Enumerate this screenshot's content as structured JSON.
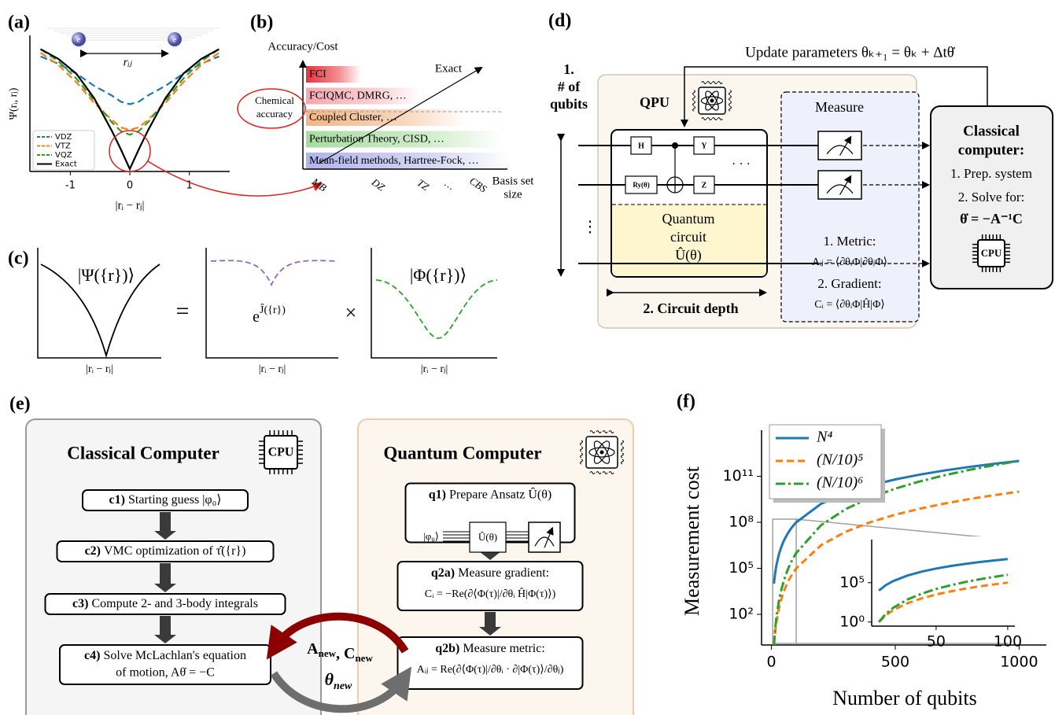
{
  "panel_a": {
    "label": "(a)",
    "y_label": "Ψ(rᵢ, rⱼ)",
    "x_label": "|rᵢ − rⱼ|",
    "distance_label": "rᵢⱼ",
    "electrons": [
      "e",
      "e"
    ],
    "x": [
      -1.5,
      -1.2,
      -0.9,
      -0.6,
      -0.3,
      -0.15,
      0,
      0.15,
      0.3,
      0.6,
      0.9,
      1.2,
      1.5
    ],
    "series": [
      {
        "name": "VDZ",
        "color": "#1f77b4",
        "linestyle": "dashed",
        "values": [
          0.94,
          0.88,
          0.8,
          0.7,
          0.62,
          0.57,
          0.55,
          0.57,
          0.62,
          0.7,
          0.8,
          0.88,
          0.94
        ]
      },
      {
        "name": "VTZ",
        "color": "#ff7f0e",
        "linestyle": "dashed",
        "values": [
          0.97,
          0.87,
          0.73,
          0.56,
          0.42,
          0.36,
          0.34,
          0.36,
          0.42,
          0.56,
          0.73,
          0.87,
          0.97
        ]
      },
      {
        "name": "VQZ",
        "color": "#2ca02c",
        "linestyle": "dashed",
        "values": [
          1.0,
          0.9,
          0.76,
          0.58,
          0.4,
          0.33,
          0.3,
          0.33,
          0.4,
          0.58,
          0.76,
          0.9,
          1.0
        ]
      },
      {
        "name": "Exact",
        "color": "#000000",
        "linestyle": "solid",
        "values": [
          1.0,
          0.92,
          0.8,
          0.6,
          0.33,
          0.18,
          0.02,
          0.18,
          0.33,
          0.6,
          0.8,
          0.92,
          1.0
        ]
      }
    ],
    "xlim": [
      -1.6,
      1.6
    ],
    "ylim": [
      0,
      1.08
    ],
    "xticks": [
      -1,
      0,
      1
    ],
    "legend": "lower left"
  },
  "panel_b": {
    "label": "(b)",
    "y_label": "Accuracy/Cost",
    "methods": [
      {
        "text": "FCI",
        "color": "#e8323c"
      },
      {
        "text": "FCIQMC, DMRG, …",
        "color": "#f4a7b0"
      },
      {
        "text": "Coupled Cluster, …",
        "color": "#f3b585"
      },
      {
        "text": "Perturbation Theory, CISD, …",
        "color": "#a8dca0"
      },
      {
        "text": "Mean-field methods, Hartree-Fock, …",
        "color": "#b0b4ec"
      }
    ],
    "exact_label": "Exact",
    "chemical_accuracy": [
      "Chemical",
      "accuracy"
    ],
    "basis_sets": [
      "MB",
      "DZ",
      "TZ",
      "…",
      "CBS"
    ],
    "x_label": [
      "Basis set",
      "size"
    ]
  },
  "panel_c": {
    "label": "(c)",
    "psi": "|Ψ({r})⟩",
    "equals": "=",
    "jastrow": {
      "base": "e",
      "exponent": "Ĵ({r})"
    },
    "times": "×",
    "phi": "|Φ({r})⟩",
    "x_labels": [
      "|rᵢ − rⱼ|",
      "|rᵢ − rⱼ|",
      "|rᵢ − rⱼ|"
    ]
  },
  "panel_d": {
    "label": "(d)",
    "update": "Update parameters θₖ₊₁ = θₖ + Δtθ̇",
    "qubits_label": [
      "1.",
      "# of",
      "qubits"
    ],
    "qpu": "QPU",
    "gates": [
      "H",
      "Y",
      "Ry(θ)",
      "Z"
    ],
    "circuit_label": [
      "Quantum",
      "circuit",
      "Û(θ)"
    ],
    "ellipsis_h": "· · ·",
    "ellipsis_v": "⋮",
    "measure": "Measure",
    "metric": [
      "1. Metric:",
      "Aᵢⱼ = ⟨∂θᵢΦ|∂θⱼΦ⟩"
    ],
    "gradient": [
      "2. Gradient:",
      "Cᵢ = ⟨∂θᵢΦ|Ĥ|Φ⟩"
    ],
    "depth": "2. Circuit depth",
    "classical": [
      "Classical",
      "computer:"
    ],
    "steps": [
      "1. Prep. system",
      "2. Solve for:"
    ],
    "solve": "θ̇ = −A⁻¹C",
    "cpu": "CPU"
  },
  "panel_e": {
    "label": "(e)",
    "classical_title": "Classical Computer",
    "quantum_title": "Quantum Computer",
    "cpu": "CPU",
    "classical_steps": [
      {
        "id": "c1)",
        "text": [
          "Starting guess |φ₀⟩"
        ]
      },
      {
        "id": "c2)",
        "text": [
          "VMC optimization of τ̂({r})"
        ]
      },
      {
        "id": "c3)",
        "text": [
          "Compute 2- and 3-body integrals"
        ]
      },
      {
        "id": "c4)",
        "text": [
          "Solve McLachlan's equation",
          "of motion, Aθ̇ = −C"
        ]
      }
    ],
    "quantum_steps": [
      {
        "id": "q1)",
        "text": [
          "Prepare Ansatz Û(θ)"
        ]
      },
      {
        "id": "q2a)",
        "text": [
          "Measure gradient:",
          "Cᵢ = −Re(∂⟨Φ(τ)|/∂θᵢ Ĥ|Φ(τ)⟩)"
        ]
      },
      {
        "id": "q2b)",
        "text": [
          "Measure metric:",
          "Aᵢⱼ = Re(∂⟨Φ(τ)|/∂θᵢ · ∂|Φ(τ)⟩/∂θⱼ)"
        ]
      }
    ],
    "ansatz_input": "|φ₀⟩",
    "ansatz_gate": "Û(θ)",
    "to_classical": [
      {
        "symbol": "A",
        "subscript": "new"
      },
      {
        "symbol": "C",
        "subscript": "new"
      }
    ],
    "separator": ", ",
    "to_quantum": {
      "symbol": "θ",
      "subscript": "new"
    }
  },
  "panel_f": {
    "label": "(f)",
    "type": "line",
    "y_label": "Measurement cost",
    "x_label": "Number of qubits",
    "log_y": true,
    "x": [
      10,
      15,
      20,
      30,
      40,
      50,
      60,
      70,
      80,
      90,
      100,
      200,
      300,
      400,
      500,
      600,
      700,
      800,
      900,
      1000
    ],
    "series": [
      {
        "name": "N⁴",
        "color": "#1f77b4",
        "linestyle": "solid",
        "values": [
          10000,
          50625,
          160000,
          810000,
          2560000,
          6250000,
          12960000,
          24010000,
          40960000,
          65610000,
          100000000,
          1600000000,
          8100000000,
          25600000000,
          62500000000,
          129600000000,
          240100000000,
          409600000000,
          656100000000,
          1000000000000
        ]
      },
      {
        "name": "(N/10)⁵",
        "color": "#ff7f0e",
        "linestyle": "dashed",
        "values": [
          1,
          7.59375,
          32,
          243,
          1024,
          3125,
          7776,
          16807,
          32768,
          59049,
          100000,
          3200000,
          24300000,
          102400000,
          312500000,
          777600000,
          1680700000,
          3276800000,
          5904900000,
          10000000000
        ]
      },
      {
        "name": "(N/10)⁶",
        "color": "#2ca02c",
        "linestyle": "dashdot",
        "values": [
          1,
          11.390625,
          64,
          729,
          4096,
          15625,
          46656,
          117649,
          262144,
          531441,
          1000000,
          64000000,
          729000000,
          4096000000,
          15625000000,
          46656000000,
          117649000000,
          262144000000,
          531441000000,
          1000000000000
        ]
      }
    ],
    "xlim": [
      -40,
      1110
    ],
    "ylim": [
      1,
      100000000000000
    ],
    "xticks": [
      0,
      500,
      1000
    ],
    "yticks": [
      {
        "value": 100,
        "label": "10²"
      },
      {
        "value": 100000,
        "label": "10⁵"
      },
      {
        "value": 100000000,
        "label": "10⁸"
      },
      {
        "value": 100000000000,
        "label": "10¹¹"
      }
    ],
    "legend": "upper left",
    "inset": {
      "xlim": [
        5,
        105
      ],
      "ylim": [
        0.3,
        30000000000
      ],
      "xticks": [
        50,
        100
      ],
      "yticks": [
        {
          "value": 1,
          "label": "10⁰"
        },
        {
          "value": 100000,
          "label": "10⁵"
        }
      ]
    }
  }
}
